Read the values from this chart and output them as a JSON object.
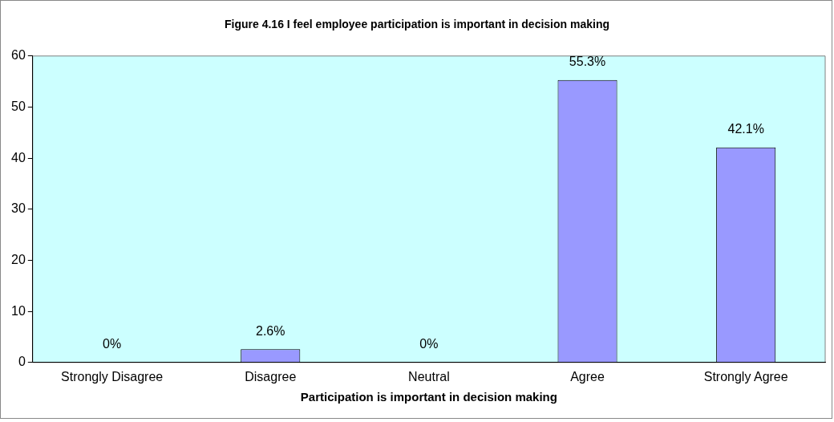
{
  "chart_data": {
    "type": "bar",
    "title": "Figure 4.16 I feel employee participation is important in decision making",
    "xlabel": "Participation is important in decision making",
    "categories": [
      "Strongly Disagree",
      "Disagree",
      "Neutral",
      "Agree",
      "Strongly Agree"
    ],
    "values": [
      0,
      2.6,
      0,
      55.3,
      42.1
    ],
    "value_labels": [
      "0%",
      "2.6%",
      "0%",
      "55.3%",
      "42.1%"
    ],
    "color": "#9999ff",
    "ylim": [
      0,
      60
    ],
    "yticks": [
      0,
      10,
      20,
      30,
      40,
      50,
      60
    ],
    "grid": false,
    "legend": false
  }
}
